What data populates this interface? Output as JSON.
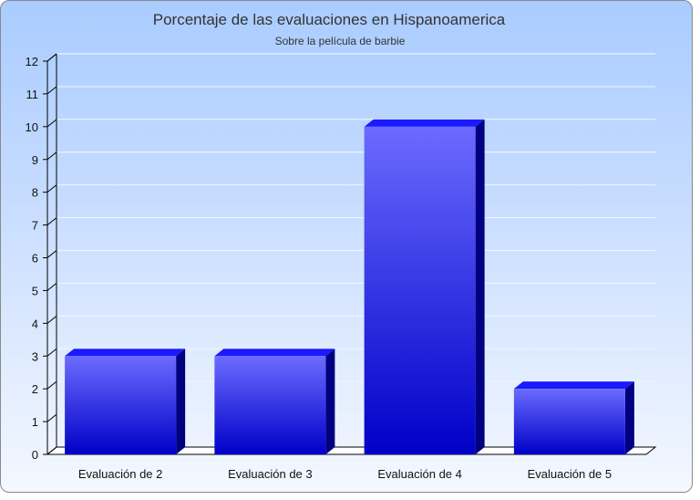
{
  "chart_data": {
    "type": "bar",
    "title": "Porcentaje de las evaluaciones en Hispanoamerica",
    "subtitle": "Sobre la película de barbie",
    "categories": [
      "Evaluación de 2",
      "Evaluación de 3",
      "Evaluación de 4",
      "Evaluación de 5"
    ],
    "values": [
      3,
      3,
      10,
      2
    ],
    "ylim": [
      0,
      12
    ],
    "yticks": [
      0,
      1,
      2,
      3,
      4,
      5,
      6,
      7,
      8,
      9,
      10,
      11,
      12
    ],
    "grid": true,
    "colors": {
      "bar_front_top": "#6b6bff",
      "bar_front_bottom": "#0000c8",
      "bar_top": "#1a1aff",
      "bar_side": "#000080",
      "gridline": "#eef3ff",
      "axis": "#000000"
    }
  }
}
